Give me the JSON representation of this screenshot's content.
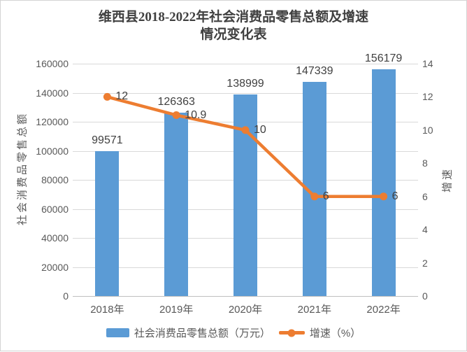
{
  "title": {
    "line1": "维西县2018-2022年社会消费品零售总额及增速",
    "line2": "情况变化表"
  },
  "colors": {
    "bar": "#5B9BD5",
    "line": "#ED7D31",
    "grid": "#D9D9D9",
    "text_primary": "#404040",
    "text_axis": "#595959"
  },
  "chart_data": {
    "type": "bar",
    "subtype": "bar-line-combo",
    "title": "维西县2018-2022年社会消费品零售总额及增速情况变化表",
    "categories": [
      "2018年",
      "2019年",
      "2020年",
      "2021年",
      "2022年"
    ],
    "series": [
      {
        "name": "社会消费品零售总额（万元）",
        "type": "bar",
        "axis": "left",
        "color": "#5B9BD5",
        "values": [
          99571,
          126363,
          138999,
          147339,
          156179
        ],
        "labels": [
          "99571",
          "126363",
          "138999",
          "147339",
          "156179"
        ]
      },
      {
        "name": "增速（%）",
        "type": "line",
        "axis": "right",
        "color": "#ED7D31",
        "values": [
          12,
          10.9,
          10,
          6,
          6
        ],
        "labels": [
          "12",
          "10.9",
          "10",
          "6",
          "6"
        ]
      }
    ],
    "left_axis": {
      "label": "社会消费品零售总额",
      "min": 0,
      "max": 160000,
      "step": 20000,
      "ticks": [
        "160000",
        "140000",
        "120000",
        "100000",
        "80000",
        "60000",
        "40000",
        "20000",
        "0"
      ]
    },
    "right_axis": {
      "label": "增速",
      "min": 0,
      "max": 14,
      "step": 2,
      "ticks": [
        "14",
        "12",
        "10",
        "8",
        "6",
        "4",
        "2",
        "0"
      ]
    },
    "grid": true,
    "legend_position": "bottom"
  }
}
